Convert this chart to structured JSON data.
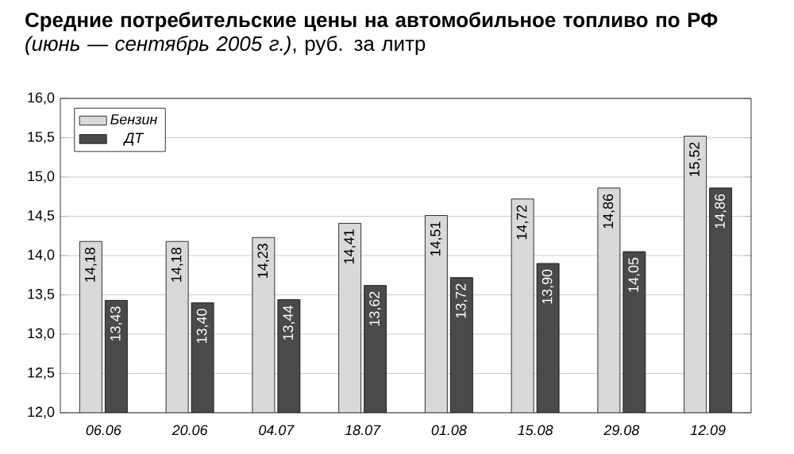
{
  "chart_data": {
    "type": "bar",
    "title": "**Средние потребительские цены на автомобильное топливо по РФ** *(июнь — сентябрь 2005 г.)*, руб. за литр",
    "categories": [
      "06.06",
      "20.06",
      "04.07",
      "18.07",
      "01.08",
      "15.08",
      "29.08",
      "12.09"
    ],
    "series": [
      {
        "name": "Бензин",
        "color": "#d9d9d9",
        "values": [
          14.18,
          14.18,
          14.23,
          14.41,
          14.51,
          14.72,
          14.86,
          15.52
        ],
        "value_labels": [
          "14,18",
          "14,18",
          "14,23",
          "14,41",
          "14,51",
          "14,72",
          "14,86",
          "15,52"
        ]
      },
      {
        "name": "ДТ",
        "color": "#4a4a4a",
        "values": [
          13.43,
          13.4,
          13.44,
          13.62,
          13.72,
          13.9,
          14.05,
          14.86
        ],
        "value_labels": [
          "13,43",
          "13,40",
          "13,44",
          "13,62",
          "13,72",
          "13,90",
          "14,05",
          "14,86"
        ]
      }
    ],
    "ylim": [
      12,
      16
    ],
    "yticks": [
      {
        "value": 12,
        "label": "12,0"
      },
      {
        "value": 12.5,
        "label": "12,5"
      },
      {
        "value": 13,
        "label": "13,0"
      },
      {
        "value": 13.5,
        "label": "13,5"
      },
      {
        "value": 14,
        "label": "14,0"
      },
      {
        "value": 14.5,
        "label": "14,5"
      },
      {
        "value": 15,
        "label": "15,0"
      },
      {
        "value": 15.5,
        "label": "15,5"
      },
      {
        "value": 16,
        "label": "16,0"
      }
    ],
    "grid": "y",
    "legend": "top left"
  }
}
